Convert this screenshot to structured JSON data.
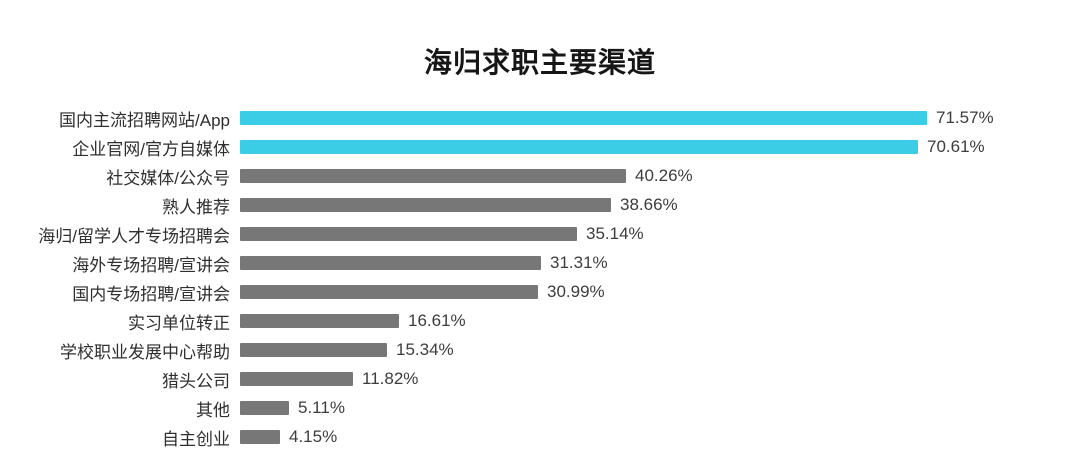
{
  "page": {
    "background_color": "#ffffff"
  },
  "chart_data": {
    "type": "bar",
    "orientation": "horizontal",
    "title": "海归求职主要渠道",
    "categories": [
      "国内主流招聘网站/App",
      "企业官网/官方自媒体",
      "社交媒体/公众号",
      "熟人推荐",
      "海归/留学人才专场招聘会",
      "海外专场招聘/宣讲会",
      "国内专场招聘/宣讲会",
      "实习单位转正",
      "学校职业发展中心帮助",
      "猎头公司",
      "其他",
      "自主创业"
    ],
    "values": [
      71.57,
      70.61,
      40.26,
      38.66,
      35.14,
      31.31,
      30.99,
      16.61,
      15.34,
      11.82,
      5.11,
      4.15
    ],
    "value_labels": [
      "71.57%",
      "70.61%",
      "40.26%",
      "38.66%",
      "35.14%",
      "31.31%",
      "30.99%",
      "16.61%",
      "15.34%",
      "11.82%",
      "5.11%",
      "4.15%"
    ],
    "bar_colors": [
      "#3ACDE5",
      "#3ACDE5",
      "#777777",
      "#777777",
      "#777777",
      "#777777",
      "#777777",
      "#777777",
      "#777777",
      "#777777",
      "#777777",
      "#777777"
    ],
    "highlight_color": "#3ACDE5",
    "default_color": "#777777",
    "xlim": [
      0,
      75
    ],
    "grid": false,
    "legend": false,
    "value_label_position": "end-of-bar"
  }
}
